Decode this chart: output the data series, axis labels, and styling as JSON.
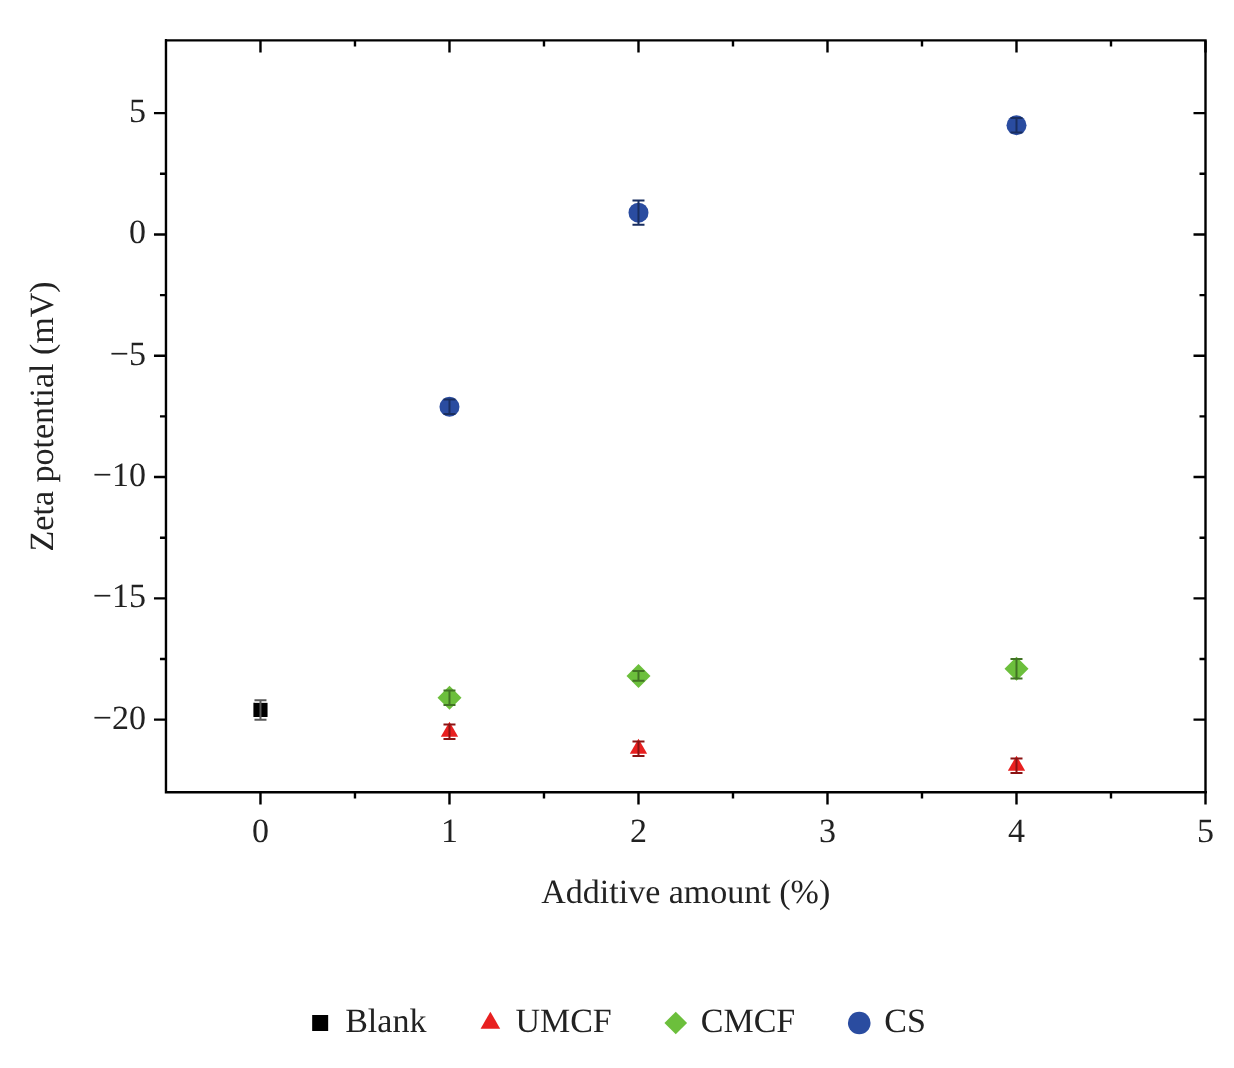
{
  "chart_data": {
    "type": "scatter",
    "xlabel": "Additive amount (%)",
    "ylabel": "Zeta potential (mV)",
    "xlim": [
      -0.5,
      5
    ],
    "xticks": [
      0,
      1,
      2,
      3,
      4,
      5
    ],
    "ylim": [
      -23,
      8
    ],
    "yticks": [
      -20,
      -15,
      -10,
      -5,
      0,
      5
    ],
    "grid": false,
    "legend": "bottom",
    "series": [
      {
        "name": "Blank",
        "color": "#000000",
        "marker": "square",
        "x": [
          0
        ],
        "values": [
          -19.6
        ],
        "errors": [
          0.4
        ]
      },
      {
        "name": "UMCF",
        "color": "#e82020",
        "marker": "triangle",
        "x": [
          1,
          2,
          4
        ],
        "values": [
          -20.5,
          -21.2,
          -21.9
        ],
        "errors": [
          0.3,
          0.3,
          0.3
        ]
      },
      {
        "name": "CMCF",
        "color": "#6cbf3c",
        "marker": "diamond",
        "x": [
          1,
          2,
          4
        ],
        "values": [
          -19.1,
          -18.2,
          -17.9
        ],
        "errors": [
          0.3,
          0.2,
          0.4
        ]
      },
      {
        "name": "CS",
        "color": "#2a4ca0",
        "marker": "circle",
        "x": [
          1,
          2,
          4
        ],
        "values": [
          -7.1,
          0.9,
          4.5
        ],
        "errors": [
          0.3,
          0.5,
          0.3
        ]
      }
    ]
  }
}
